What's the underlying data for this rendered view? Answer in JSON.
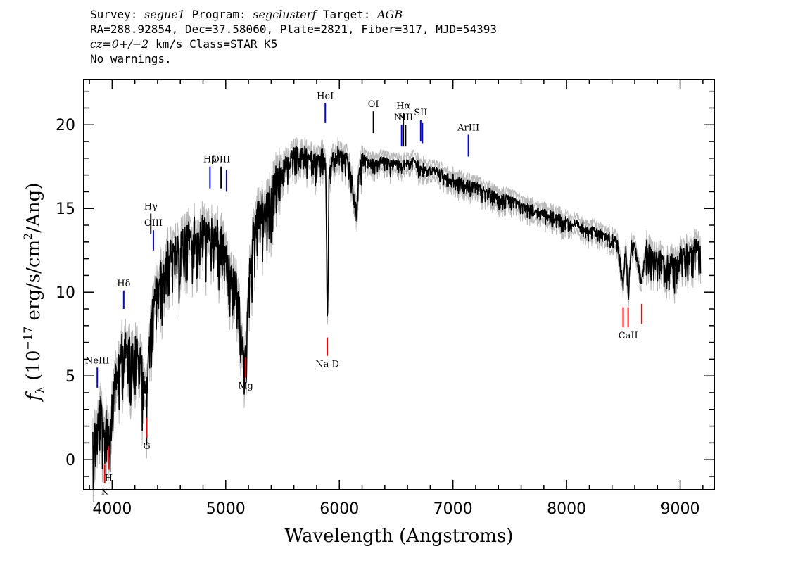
{
  "header": {
    "survey_label": "Survey:",
    "survey": "segue1",
    "program_label": "Program:",
    "program": "segclusterf",
    "target_label": "Target:",
    "target": "AGB",
    "line2": "RA=288.92854, Dec=37.58060, Plate=2821, Fiber=317, MJD=54393",
    "cz_label": "cz=0+/−2",
    "cz_rest": " km/s Class=STAR K5",
    "line4": "No warnings."
  },
  "chart_data": {
    "type": "line",
    "title": "",
    "xlabel": "Wavelength (Angstroms)",
    "ylabel": "fλ (10⁻¹⁷ erg/s/cm²/Ang)",
    "xlim": [
      3750,
      9300
    ],
    "ylim": [
      -1.8,
      22.7
    ],
    "x_ticks": [
      4000,
      5000,
      6000,
      7000,
      8000,
      9000
    ],
    "y_ticks": [
      0,
      5,
      10,
      15,
      20
    ],
    "grid": false,
    "series": [
      {
        "color": "#000000",
        "x": [
          3830,
          3870,
          3900,
          3930,
          3950,
          3970,
          4000,
          4030,
          4060,
          4100,
          4150,
          4200,
          4250,
          4300,
          4350,
          4400,
          4450,
          4500,
          4550,
          4600,
          4650,
          4700,
          4750,
          4800,
          4850,
          4900,
          4950,
          5000,
          5050,
          5100,
          5150,
          5180,
          5210,
          5250,
          5300,
          5350,
          5400,
          5450,
          5500,
          5550,
          5600,
          5650,
          5700,
          5750,
          5800,
          5850,
          5880,
          5895,
          5910,
          5950,
          6000,
          6050,
          6100,
          6150,
          6170,
          6200,
          6250,
          6300,
          6350,
          6400,
          6450,
          6500,
          6550,
          6600,
          6650,
          6700,
          6800,
          6900,
          7000,
          7100,
          7200,
          7300,
          7400,
          7500,
          7600,
          7700,
          7800,
          7900,
          8000,
          8100,
          8200,
          8300,
          8400,
          8450,
          8498,
          8520,
          8542,
          8570,
          8600,
          8662,
          8700,
          8750,
          8800,
          8850,
          8900,
          8950,
          9000,
          9050,
          9100,
          9150,
          9180
        ],
        "y": [
          1.5,
          2.0,
          3.5,
          1.5,
          3.0,
          1.5,
          4.5,
          5.5,
          6.0,
          7.5,
          6.5,
          7.0,
          6.5,
          4.5,
          9.0,
          11.0,
          11.5,
          12.5,
          12.5,
          13.0,
          13.5,
          14.0,
          13.5,
          14.0,
          13.5,
          14.0,
          13.5,
          12.5,
          11.0,
          10.5,
          7.0,
          7.0,
          11.5,
          14.5,
          15.5,
          15.0,
          16.5,
          17.0,
          17.5,
          18.0,
          18.5,
          18.3,
          18.5,
          18.2,
          18.0,
          18.3,
          17.5,
          7.8,
          17.5,
          18.2,
          18.5,
          18.3,
          17.2,
          15.0,
          17.0,
          18.2,
          18.0,
          17.8,
          17.9,
          18.0,
          17.8,
          17.9,
          17.7,
          17.9,
          18.0,
          17.6,
          17.4,
          17.2,
          16.9,
          16.6,
          16.4,
          16.1,
          15.8,
          15.6,
          15.3,
          15.1,
          14.8,
          14.6,
          14.3,
          14.1,
          13.9,
          13.6,
          13.4,
          13.0,
          10.5,
          13.0,
          10.0,
          13.0,
          12.9,
          10.8,
          12.7,
          12.6,
          12.3,
          12.0,
          11.8,
          12.0,
          12.3,
          12.8,
          12.6,
          12.9,
          12.6
        ]
      }
    ],
    "lines": [
      {
        "name": "NeIII",
        "x": 3869,
        "color": "#0000ff",
        "y_top": 5.5,
        "y_bot": 4.3,
        "label_pos": "above"
      },
      {
        "name": "Hδ",
        "x": 4102,
        "color": "#0000ff",
        "y_top": 10.1,
        "y_bot": 9.0,
        "label_pos": "above"
      },
      {
        "name": "Hγ",
        "x": 4340,
        "color": "#000000",
        "y_top": 14.7,
        "y_bot": 13.5,
        "label_pos": "above"
      },
      {
        "name": "OIII",
        "x": 4363,
        "color": "#0000ff",
        "y_top": 13.7,
        "y_bot": 12.5,
        "label_pos": "above"
      },
      {
        "name": "Hβ",
        "x": 4861,
        "color": "#0000ff",
        "y_top": 17.5,
        "y_bot": 16.2,
        "label_pos": "above"
      },
      {
        "name": "OIII",
        "x": 4959,
        "color": "#000000",
        "y_top": 17.5,
        "y_bot": 16.2,
        "label_pos": "above"
      },
      {
        "name": "",
        "x": 5007,
        "color": "#0000ff",
        "y_top": 17.3,
        "y_bot": 16.0
      },
      {
        "name": "HeI",
        "x": 5876,
        "color": "#0000ff",
        "y_top": 21.3,
        "y_bot": 20.1,
        "label_pos": "above"
      },
      {
        "name": "OI",
        "x": 6300,
        "color": "#000000",
        "y_top": 20.8,
        "y_bot": 19.5,
        "label_pos": "above"
      },
      {
        "name": "NII",
        "x": 6548,
        "color": "#0000ff",
        "y_top": 20.0,
        "y_bot": 18.7,
        "label_pos": "above"
      },
      {
        "name": "Hα",
        "x": 6563,
        "color": "#000000",
        "y_top": 20.7,
        "y_bot": 18.7,
        "label_pos": "above"
      },
      {
        "name": "NII",
        "x": 6583,
        "color": "#000000",
        "y_top": 20.0,
        "y_bot": 18.7
      },
      {
        "name": "SII",
        "x": 6716,
        "color": "#0000ff",
        "y_top": 20.3,
        "y_bot": 19.0,
        "label_pos": "above"
      },
      {
        "name": "",
        "x": 6731,
        "color": "#0000ff",
        "y_top": 20.1,
        "y_bot": 18.9
      },
      {
        "name": "ArIII",
        "x": 7136,
        "color": "#0000ff",
        "y_top": 19.4,
        "y_bot": 18.1,
        "label_pos": "above"
      },
      {
        "name": "K",
        "x": 3934,
        "color": "#ff0000",
        "y_top": -0.3,
        "y_bot": -1.4,
        "label_pos": "below"
      },
      {
        "name": "H",
        "x": 3969,
        "color": "#ff0000",
        "y_top": 0.8,
        "y_bot": -0.6,
        "label_pos": "below"
      },
      {
        "name": "G",
        "x": 4305,
        "color": "#ff0000",
        "y_top": 2.5,
        "y_bot": 1.3,
        "label_pos": "below"
      },
      {
        "name": "Mg",
        "x": 5175,
        "color": "#ff0000",
        "y_top": 6.1,
        "y_bot": 4.9,
        "label_pos": "below"
      },
      {
        "name": "Na D",
        "x": 5894,
        "color": "#ff0000",
        "y_top": 7.3,
        "y_bot": 6.2,
        "label_pos": "below"
      },
      {
        "name": "",
        "x": 8498,
        "color": "#ff0000",
        "y_top": 9.1,
        "y_bot": 7.9
      },
      {
        "name": "CaII",
        "x": 8542,
        "color": "#ff0000",
        "y_top": 9.1,
        "y_bot": 7.9,
        "label_pos": "below"
      },
      {
        "name": "",
        "x": 8662,
        "color": "#ff0000",
        "y_top": 9.3,
        "y_bot": 8.1
      }
    ]
  }
}
